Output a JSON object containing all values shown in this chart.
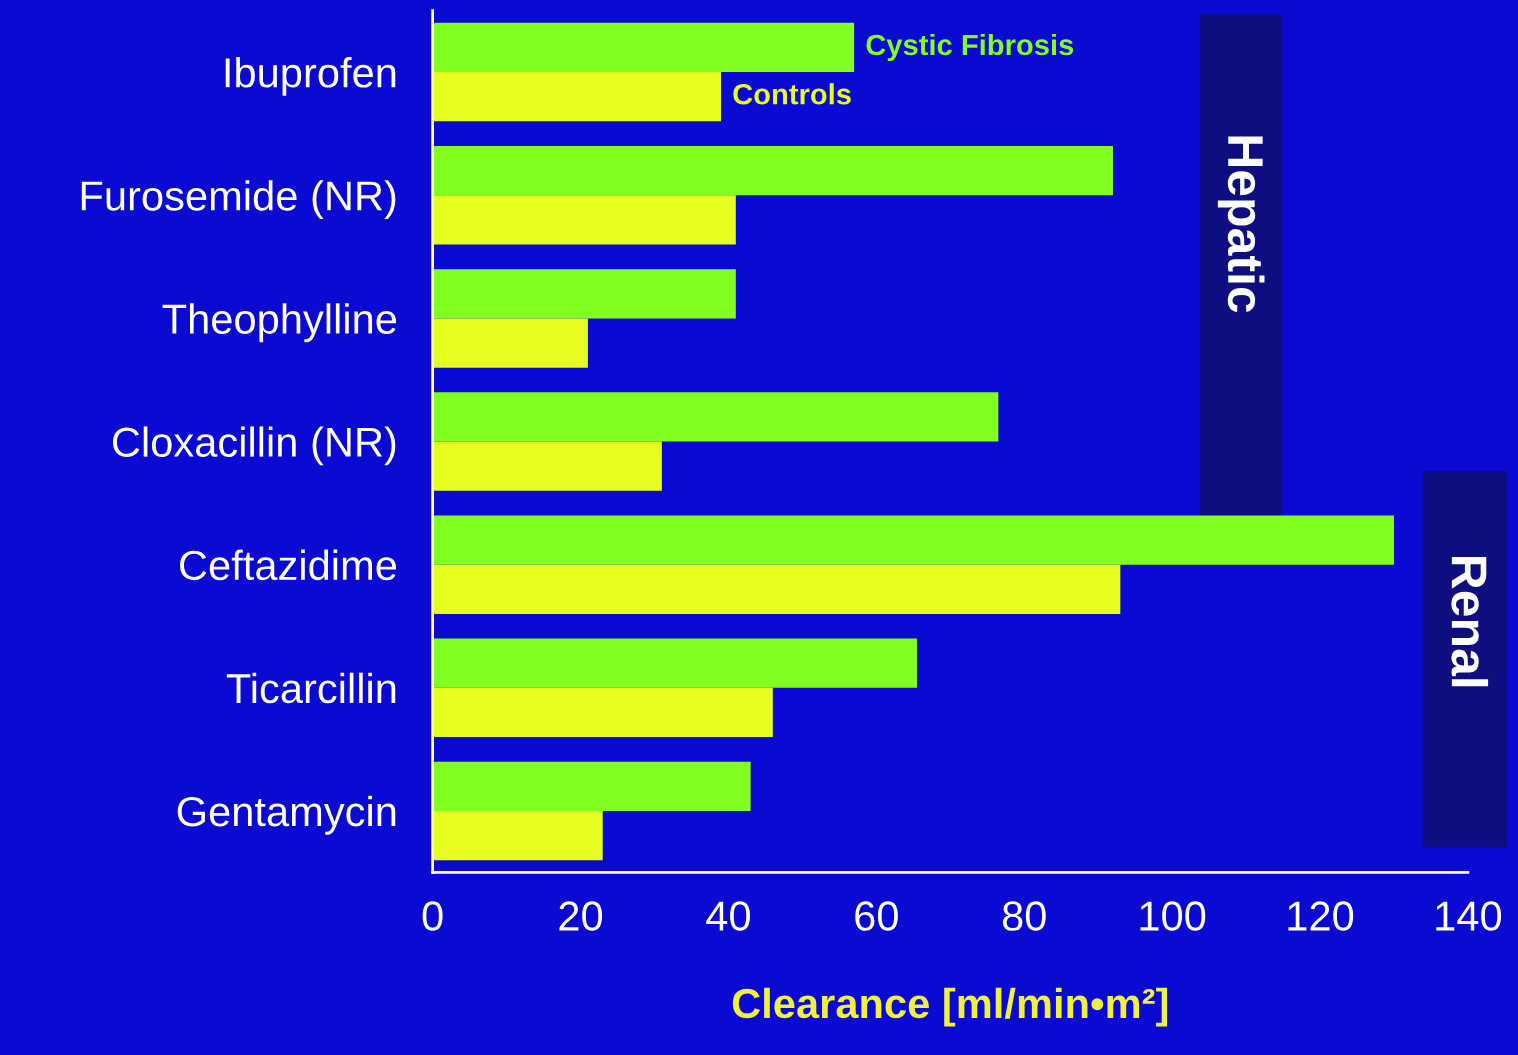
{
  "chart_data": {
    "type": "bar",
    "orientation": "horizontal",
    "categories": [
      "Ibuprofen",
      "Furosemide (NR)",
      "Theophylline",
      "Cloxacillin (NR)",
      "Ceftazidime",
      "Ticarcillin",
      "Gentamycin"
    ],
    "series": [
      {
        "name": "Cystic Fibrosis",
        "color": "#80ff20",
        "values": [
          57,
          92,
          41,
          76.5,
          130,
          65.5,
          43
        ]
      },
      {
        "name": "Controls",
        "color": "#e6ff20",
        "values": [
          39,
          41,
          21,
          31,
          93,
          46,
          23
        ]
      }
    ],
    "xlabel": "Clearance [ml/min•m²]",
    "xlim": [
      0,
      140
    ],
    "xticks": [
      0,
      20,
      40,
      60,
      80,
      100,
      120,
      140
    ],
    "annotations": [
      "Hepatic",
      "Renal"
    ],
    "grid": false,
    "legend": false
  }
}
